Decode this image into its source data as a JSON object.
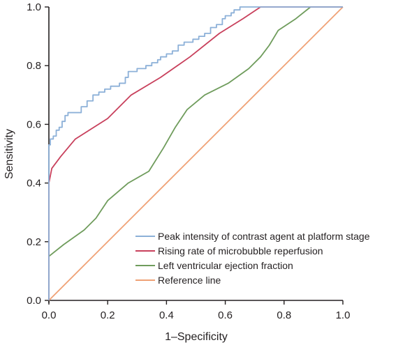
{
  "chart_data": {
    "type": "line",
    "title": "",
    "xlabel": "1–Specificity",
    "ylabel": "Sensitivity",
    "xlim": [
      0,
      1
    ],
    "ylim": [
      0,
      1
    ],
    "x_ticks": [
      "0.0",
      "0.2",
      "0.4",
      "0.6",
      "0.8",
      "1.0"
    ],
    "y_ticks": [
      "0.0",
      "0.2",
      "0.4",
      "0.6",
      "0.8",
      "1.0"
    ],
    "grid": false,
    "legend_position": "bottom-right",
    "series": [
      {
        "name": "Peak intensity of contrast agent at platform stage",
        "color": "#8cb0d8",
        "points": [
          [
            0,
            0
          ],
          [
            0,
            0.53
          ],
          [
            0.005,
            0.53
          ],
          [
            0.005,
            0.55
          ],
          [
            0.015,
            0.55
          ],
          [
            0.015,
            0.56
          ],
          [
            0.025,
            0.56
          ],
          [
            0.025,
            0.58
          ],
          [
            0.035,
            0.58
          ],
          [
            0.035,
            0.59
          ],
          [
            0.045,
            0.59
          ],
          [
            0.045,
            0.61
          ],
          [
            0.055,
            0.61
          ],
          [
            0.055,
            0.63
          ],
          [
            0.065,
            0.63
          ],
          [
            0.065,
            0.64
          ],
          [
            0.11,
            0.64
          ],
          [
            0.11,
            0.66
          ],
          [
            0.13,
            0.66
          ],
          [
            0.13,
            0.68
          ],
          [
            0.15,
            0.68
          ],
          [
            0.15,
            0.7
          ],
          [
            0.17,
            0.7
          ],
          [
            0.17,
            0.71
          ],
          [
            0.19,
            0.71
          ],
          [
            0.19,
            0.72
          ],
          [
            0.21,
            0.72
          ],
          [
            0.21,
            0.73
          ],
          [
            0.24,
            0.73
          ],
          [
            0.24,
            0.74
          ],
          [
            0.26,
            0.74
          ],
          [
            0.26,
            0.76
          ],
          [
            0.27,
            0.76
          ],
          [
            0.27,
            0.78
          ],
          [
            0.3,
            0.78
          ],
          [
            0.3,
            0.79
          ],
          [
            0.33,
            0.79
          ],
          [
            0.33,
            0.8
          ],
          [
            0.35,
            0.8
          ],
          [
            0.35,
            0.81
          ],
          [
            0.37,
            0.81
          ],
          [
            0.37,
            0.82
          ],
          [
            0.38,
            0.82
          ],
          [
            0.38,
            0.83
          ],
          [
            0.4,
            0.83
          ],
          [
            0.4,
            0.84
          ],
          [
            0.42,
            0.84
          ],
          [
            0.42,
            0.85
          ],
          [
            0.44,
            0.85
          ],
          [
            0.44,
            0.87
          ],
          [
            0.46,
            0.87
          ],
          [
            0.46,
            0.88
          ],
          [
            0.49,
            0.88
          ],
          [
            0.49,
            0.89
          ],
          [
            0.51,
            0.89
          ],
          [
            0.51,
            0.9
          ],
          [
            0.53,
            0.9
          ],
          [
            0.53,
            0.91
          ],
          [
            0.55,
            0.91
          ],
          [
            0.55,
            0.93
          ],
          [
            0.57,
            0.93
          ],
          [
            0.57,
            0.94
          ],
          [
            0.59,
            0.94
          ],
          [
            0.59,
            0.96
          ],
          [
            0.6,
            0.96
          ],
          [
            0.6,
            0.97
          ],
          [
            0.62,
            0.97
          ],
          [
            0.62,
            0.98
          ],
          [
            0.63,
            0.98
          ],
          [
            0.63,
            0.99
          ],
          [
            0.65,
            0.99
          ],
          [
            0.65,
            1.0
          ],
          [
            1.0,
            1.0
          ]
        ]
      },
      {
        "name": "Rising rate of microbubble reperfusion",
        "color": "#c8405c",
        "points": [
          [
            0,
            0
          ],
          [
            0,
            0.4
          ],
          [
            0.01,
            0.45
          ],
          [
            0.04,
            0.49
          ],
          [
            0.09,
            0.55
          ],
          [
            0.2,
            0.62
          ],
          [
            0.28,
            0.7
          ],
          [
            0.38,
            0.76
          ],
          [
            0.48,
            0.83
          ],
          [
            0.58,
            0.91
          ],
          [
            0.66,
            0.96
          ],
          [
            0.72,
            1.0
          ],
          [
            1.0,
            1.0
          ]
        ]
      },
      {
        "name": "Left ventricular ejection fraction",
        "color": "#6f9c5c",
        "points": [
          [
            0,
            0
          ],
          [
            0,
            0.15
          ],
          [
            0.05,
            0.19
          ],
          [
            0.12,
            0.24
          ],
          [
            0.16,
            0.28
          ],
          [
            0.2,
            0.34
          ],
          [
            0.27,
            0.4
          ],
          [
            0.34,
            0.44
          ],
          [
            0.39,
            0.52
          ],
          [
            0.43,
            0.59
          ],
          [
            0.47,
            0.65
          ],
          [
            0.53,
            0.7
          ],
          [
            0.61,
            0.74
          ],
          [
            0.68,
            0.79
          ],
          [
            0.72,
            0.83
          ],
          [
            0.75,
            0.87
          ],
          [
            0.78,
            0.92
          ],
          [
            0.84,
            0.96
          ],
          [
            0.89,
            1.0
          ],
          [
            1.0,
            1.0
          ]
        ]
      },
      {
        "name": "Reference line",
        "color": "#efa175",
        "points": [
          [
            0,
            0
          ],
          [
            1,
            1
          ]
        ]
      }
    ]
  }
}
